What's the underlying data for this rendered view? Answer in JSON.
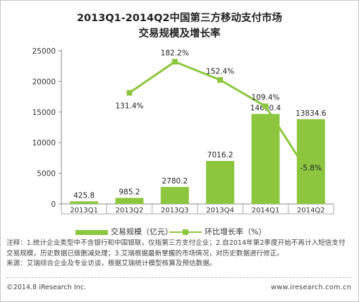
{
  "title_line1": "2013Q1-2014Q2中国第三方移动支付市场",
  "title_line2": "交易规模及增长率",
  "chart_data": {
    "type": "bar+line",
    "categories": [
      "2013Q1",
      "2013Q2",
      "2013Q3",
      "2013Q4",
      "2014Q1",
      "2014Q2"
    ],
    "series": [
      {
        "name": "交易规模（亿元）",
        "type": "bar",
        "axis": "left",
        "values": [
          425.8,
          985.2,
          2780.2,
          7016.2,
          14690.4,
          13834.6
        ],
        "labels": [
          "425.8",
          "985.2",
          "2780.2",
          "7016.2",
          "14690.4",
          "13834.6"
        ],
        "color": "#8cc63f"
      },
      {
        "name": "环比增长率（%）",
        "type": "line",
        "values": [
          null,
          131.4,
          182.2,
          152.4,
          109.4,
          -5.8
        ],
        "labels": [
          "",
          "131.4%",
          "182.2%",
          "152.4%",
          "109.4%",
          "-5.8%"
        ],
        "color": "#8cc63f"
      }
    ],
    "ylim": [
      0,
      25000
    ],
    "yticks": [
      "0",
      "5000",
      "10000",
      "15000",
      "20000",
      "25000"
    ],
    "ytick_values": [
      0,
      5000,
      10000,
      15000,
      20000,
      25000
    ],
    "line_range": [
      -50,
      200
    ],
    "grid": false,
    "legend_position": "bottom"
  },
  "notes": [
    "注释：1.统计企业类型中不含银行和中国银联，仅指第三方支付企业；2.自2014年第2季度开始不再计入短信支付交易规模，历史数据已做删减处理；3.艾瑞根据最新掌握的市场情况，对历史数据进行修正。",
    "来源：艾瑞综合企业及专业访谈，根据艾瑞统计模型核算及预估数据。"
  ],
  "footer": {
    "copyright": "©2014.8 iResearch Inc.",
    "website": "www.iresearch.com.cn"
  }
}
